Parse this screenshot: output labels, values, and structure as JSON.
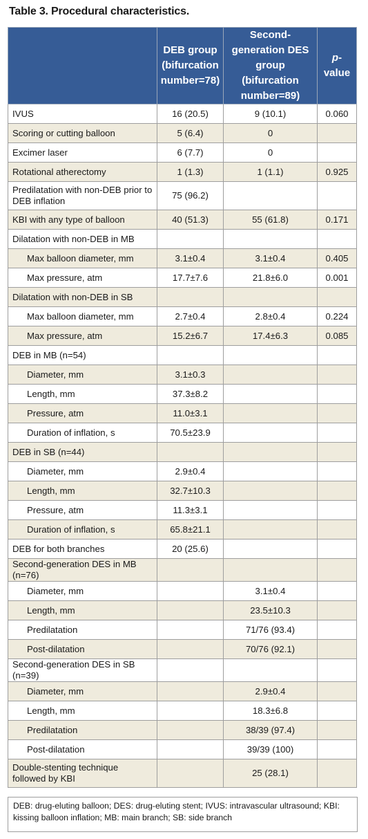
{
  "title": "Table 3. Procedural characteristics.",
  "headers": {
    "col1": "",
    "col2": "DEB group (bifurcation number=78)",
    "col3": "Second-generation DES group (bifurcation number=89)",
    "col4_italic": "p",
    "col4_rest": "-value"
  },
  "rows": [
    {
      "label": "IVUS",
      "deb": "16 (20.5)",
      "des": "9 (10.1)",
      "p": "0.060"
    },
    {
      "label": "Scoring or cutting balloon",
      "deb": "5 (6.4)",
      "des": "0",
      "p": ""
    },
    {
      "label": "Excimer laser",
      "deb": "6 (7.7)",
      "des": "0",
      "p": ""
    },
    {
      "label": "Rotational atherectomy",
      "deb": "1 (1.3)",
      "des": "1 (1.1)",
      "p": "0.925"
    },
    {
      "label": "Predilatation with non-DEB prior to DEB inflation",
      "deb": "75 (96.2)",
      "des": "",
      "p": ""
    },
    {
      "label": "KBI with any type of balloon",
      "deb": "40 (51.3)",
      "des": "55 (61.8)",
      "p": "0.171"
    },
    {
      "label": "Dilatation with non-DEB in MB",
      "deb": "",
      "des": "",
      "p": ""
    },
    {
      "label": "Max balloon diameter, mm",
      "deb": "3.1±0.4",
      "des": "3.1±0.4",
      "p": "0.405"
    },
    {
      "label": "Max pressure, atm",
      "deb": "17.7±7.6",
      "des": "21.8±6.0",
      "p": "0.001"
    },
    {
      "label": "Dilatation with non-DEB in SB",
      "deb": "",
      "des": "",
      "p": ""
    },
    {
      "label": "Max balloon diameter, mm",
      "deb": "2.7±0.4",
      "des": "2.8±0.4",
      "p": "0.224"
    },
    {
      "label": "Max pressure, atm",
      "deb": "15.2±6.7",
      "des": "17.4±6.3",
      "p": "0.085"
    },
    {
      "label": "DEB in MB (n=54)",
      "deb": "",
      "des": "",
      "p": ""
    },
    {
      "label": "Diameter, mm",
      "deb": "3.1±0.3",
      "des": "",
      "p": ""
    },
    {
      "label": "Length, mm",
      "deb": "37.3±8.2",
      "des": "",
      "p": ""
    },
    {
      "label": "Pressure, atm",
      "deb": "11.0±3.1",
      "des": "",
      "p": ""
    },
    {
      "label": "Duration of inflation, s",
      "deb": "70.5±23.9",
      "des": "",
      "p": ""
    },
    {
      "label": "DEB in SB (n=44)",
      "deb": "",
      "des": "",
      "p": ""
    },
    {
      "label": "Diameter, mm",
      "deb": "2.9±0.4",
      "des": "",
      "p": ""
    },
    {
      "label": "Length, mm",
      "deb": "32.7±10.3",
      "des": "",
      "p": ""
    },
    {
      "label": "Pressure, atm",
      "deb": "11.3±3.1",
      "des": "",
      "p": ""
    },
    {
      "label": "Duration of inflation, s",
      "deb": "65.8±21.1",
      "des": "",
      "p": ""
    },
    {
      "label": "DEB for both branches",
      "deb": "20 (25.6)",
      "des": "",
      "p": ""
    },
    {
      "label": "Second-generation DES in MB (n=76)",
      "deb": "",
      "des": "",
      "p": ""
    },
    {
      "label": "Diameter, mm",
      "deb": "",
      "des": "3.1±0.4",
      "p": ""
    },
    {
      "label": "Length, mm",
      "deb": "",
      "des": "23.5±10.3",
      "p": ""
    },
    {
      "label": "Predilatation",
      "deb": "",
      "des": "71/76 (93.4)",
      "p": ""
    },
    {
      "label": "Post-dilatation",
      "deb": "",
      "des": "70/76 (92.1)",
      "p": ""
    },
    {
      "label": "Second-generation DES in SB (n=39)",
      "deb": "",
      "des": "",
      "p": ""
    },
    {
      "label": "Diameter, mm",
      "deb": "",
      "des": "2.9±0.4",
      "p": ""
    },
    {
      "label": "Length, mm",
      "deb": "",
      "des": "18.3±6.8",
      "p": ""
    },
    {
      "label": "Predilatation",
      "deb": "",
      "des": "38/39 (97.4)",
      "p": ""
    },
    {
      "label": "Post-dilatation",
      "deb": "",
      "des": "39/39 (100)",
      "p": ""
    },
    {
      "label": "Double-stenting technique followed by KBI",
      "deb": "",
      "des": "25 (28.1)",
      "p": ""
    }
  ],
  "footnote": "DEB: drug-eluting balloon; DES: drug-eluting stent; IVUS: intravascular ultrasound; KBI: kissing balloon inflation; MB: main branch; SB: side branch",
  "colors": {
    "header_bg": "#365c96",
    "shade_bg": "#efebdd"
  }
}
